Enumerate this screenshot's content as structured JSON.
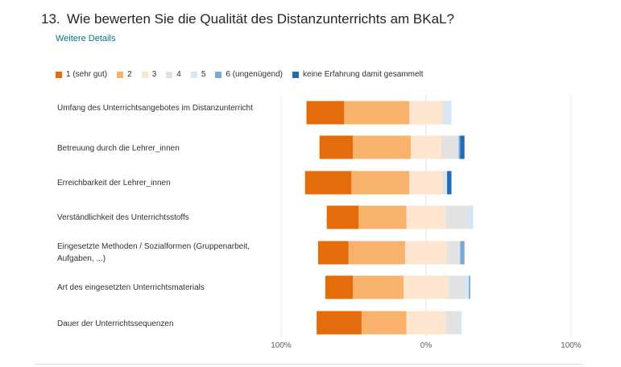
{
  "question": {
    "number": "13.",
    "text": "Wie bewerten Sie die Qualität des Distanzunterrichts am BKaL?",
    "details_link": "Weitere Details"
  },
  "colors": {
    "c1": "#e46c0a",
    "c2": "#f9b26b",
    "c3": "#fde5cf",
    "c4": "#e2e2e2",
    "c5": "#d6e6f5",
    "c6": "#7ba8d4",
    "c7": "#1f6db3"
  },
  "chart_data": {
    "type": "bar",
    "stacked": true,
    "orientation": "horizontal",
    "diverging": true,
    "categories": [
      "Umfang des Unterrichtsangebotes im Distanzunterricht",
      "Betreuung durch die Lehrer_innen",
      "Erreichbarkeit der Lehrer_innen",
      "Verständlichkeit des Unterrichtsstoffs",
      "Eingesetzte Methoden / Sozialformen (Gruppenarbeit, Aufgaben, ...)",
      "Art des eingesetzten Unterrichtsmaterials",
      "Dauer der Unterrichtssequenzen"
    ],
    "series": [
      {
        "name": "1 (sehr gut)",
        "color_key": "c1",
        "values": [
          26,
          23,
          32,
          22,
          21,
          19,
          31
        ]
      },
      {
        "name": "2",
        "color_key": "c2",
        "values": [
          45,
          40,
          40,
          33,
          39,
          35,
          31
        ]
      },
      {
        "name": "3",
        "color_key": "c3",
        "values": [
          23,
          21,
          23,
          27,
          29,
          31,
          27
        ]
      },
      {
        "name": "4",
        "color_key": "c4",
        "values": [
          1,
          11,
          2,
          15,
          8,
          11,
          9
        ]
      },
      {
        "name": "5",
        "color_key": "c5",
        "values": [
          5,
          1,
          1,
          4,
          1,
          3,
          2
        ]
      },
      {
        "name": "6 (ungenügend)",
        "color_key": "c6",
        "values": [
          0,
          1,
          0,
          0,
          3,
          1,
          0
        ]
      },
      {
        "name": "keine Erfahrung damit gesammelt",
        "color_key": "c7",
        "values": [
          0,
          3,
          3,
          0,
          0,
          0,
          0
        ]
      }
    ],
    "x_ticks": [
      "100%",
      "0%",
      "100%"
    ],
    "xlim": [
      -100,
      100
    ],
    "legend_position": "top-left",
    "grid": false
  }
}
